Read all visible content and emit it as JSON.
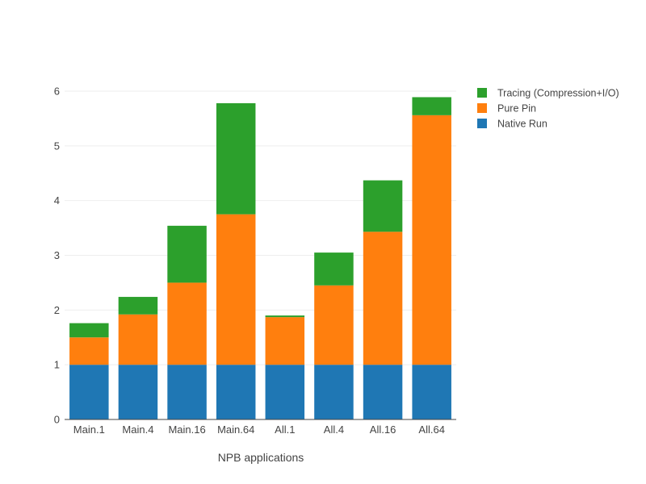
{
  "chart_data": {
    "type": "bar",
    "barmode": "stack",
    "categories": [
      "Main.1",
      "Main.4",
      "Main.16",
      "Main.64",
      "All.1",
      "All.4",
      "All.16",
      "All.64"
    ],
    "series": [
      {
        "name": "Native Run",
        "color": "#1f77b4",
        "values": [
          1,
          1,
          1,
          1,
          1,
          1,
          1,
          1
        ]
      },
      {
        "name": "Pure Pin",
        "color": "#ff7f0e",
        "values": [
          0.5,
          0.92,
          1.5,
          2.75,
          0.87,
          1.45,
          2.43,
          4.56
        ]
      },
      {
        "name": "Tracing (Compression+I/O)",
        "color": "#2ca02c",
        "values": [
          0.26,
          0.32,
          1.04,
          2.03,
          0.03,
          0.6,
          0.94,
          0.33
        ]
      }
    ],
    "title": "",
    "xlabel": "NPB applications",
    "ylabel": "",
    "ylim": [
      0,
      6
    ],
    "yticks": [
      0,
      1,
      2,
      3,
      4,
      5,
      6
    ],
    "grid": true,
    "legend_position": "top-right",
    "legend_order": [
      "Tracing (Compression+I/O)",
      "Pure Pin",
      "Native Run"
    ]
  }
}
